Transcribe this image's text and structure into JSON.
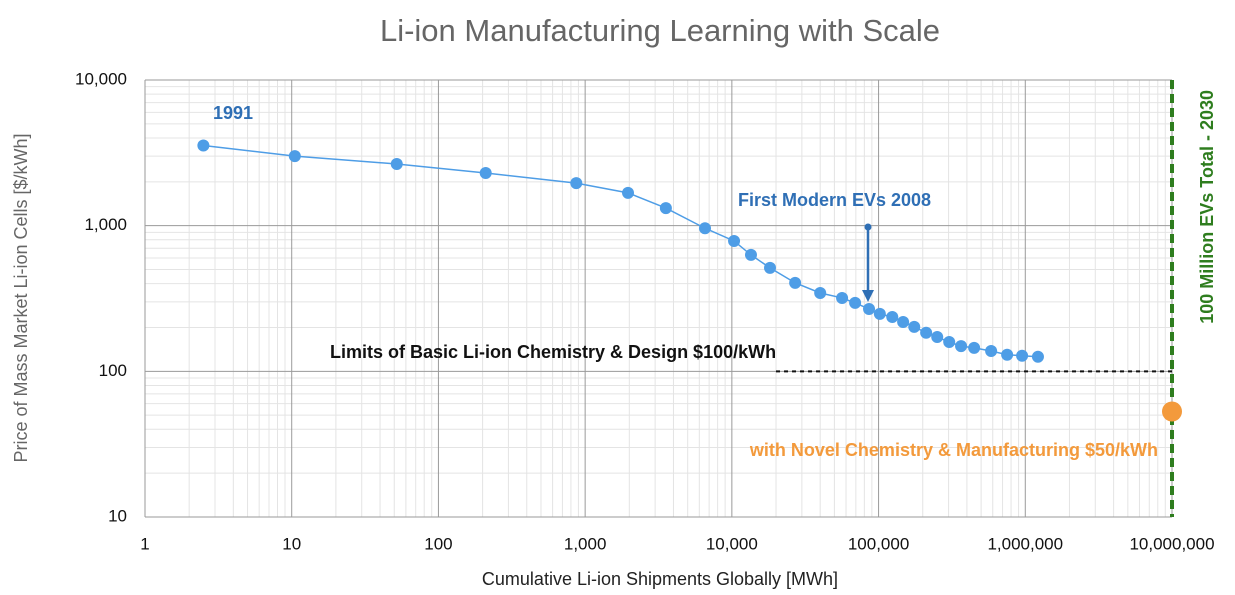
{
  "chart_data": {
    "type": "line",
    "title": "Li-ion Manufacturing Learning with Scale",
    "x_label": "Cumulative Li-ion Shipments Globally [MWh]",
    "y_label": "Price of Mass Market Li-ion Cells [$/kWh]",
    "xscale": "log",
    "yscale": "log",
    "grid": true,
    "xlim": [
      1,
      10000000
    ],
    "ylim": [
      10,
      10000
    ],
    "xticks": [
      1,
      10,
      100,
      {
        "value": 1000,
        "label": "1,000"
      },
      {
        "value": 10000,
        "label": "10,000"
      },
      {
        "value": 100000,
        "label": "100,000"
      },
      {
        "value": 1000000,
        "label": "1,000,000"
      },
      {
        "value": 10000000,
        "label": "10,000,000"
      }
    ],
    "yticks": [
      10,
      100,
      {
        "value": 1000,
        "label": "1,000"
      },
      {
        "value": 10000,
        "label": "10,000"
      }
    ],
    "series": [
      {
        "color": "#4e9de6",
        "x": [
          2.5,
          10.5,
          52,
          210,
          870,
          1960,
          3550,
          6560,
          10350,
          13500,
          18200,
          27000,
          40000,
          56400,
          69200,
          86100,
          102000,
          124000,
          147000,
          175000,
          211000,
          251000,
          303000,
          365000,
          448000,
          585000,
          752000,
          951000,
          1220000
        ],
        "values": [
          3550,
          3000,
          2650,
          2300,
          1960,
          1680,
          1320,
          960,
          785,
          630,
          513,
          405,
          345,
          319,
          295,
          268,
          248,
          236,
          218,
          202,
          184,
          172,
          159,
          149,
          145,
          138,
          130,
          128,
          126
        ]
      }
    ],
    "annotations": [
      "1991",
      "First Modern EVs 2008"
    ],
    "reference_line": {
      "label": "Limits of Basic Li-ion Chemistry & Design $100/kWh",
      "value": 100,
      "x_start": 20000,
      "color": "#111111"
    },
    "vertical_line": {
      "label": "100 Million EVs Total - 2030",
      "value": 10000000,
      "color": "#2e7d1e"
    },
    "target_point": {
      "label": "with Novel Chemistry & Manufacturing $50/kWh",
      "x": 10000000,
      "value": 53,
      "color": "#f39a3c"
    }
  }
}
